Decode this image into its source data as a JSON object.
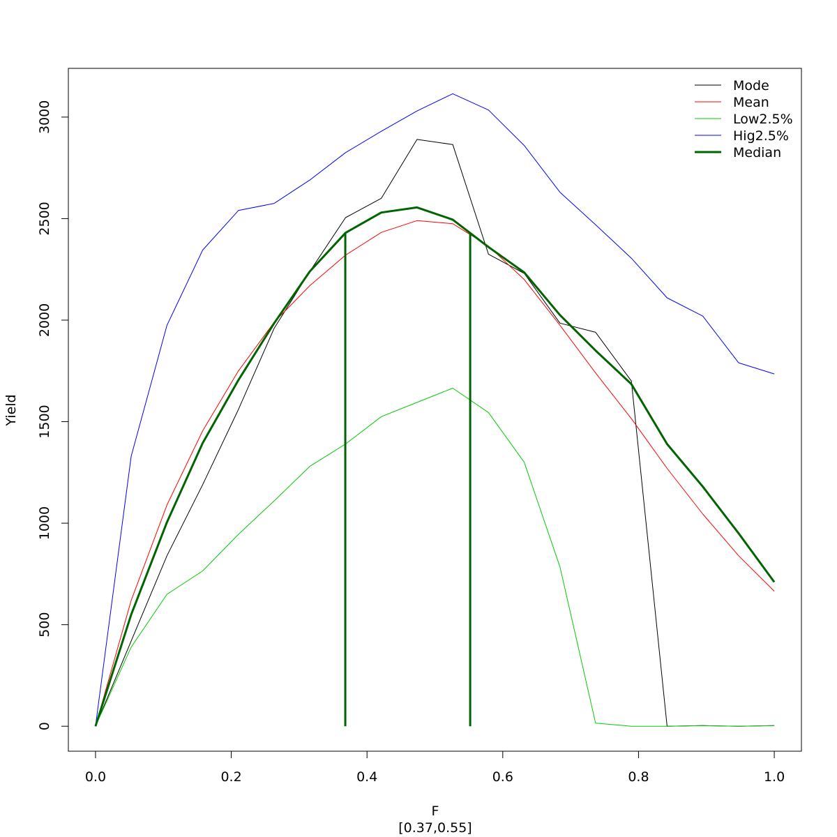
{
  "chart_data": {
    "type": "line",
    "title": "",
    "xlabel": "F",
    "xsublabel": "[0.37,0.55]",
    "ylabel": "Yield",
    "xlim": [
      -0.04,
      1.04
    ],
    "ylim": [
      -123,
      3240
    ],
    "xticks": [
      0.0,
      0.2,
      0.4,
      0.6,
      0.8,
      1.0
    ],
    "xtick_labels": [
      "0.0",
      "0.2",
      "0.4",
      "0.6",
      "0.8",
      "1.0"
    ],
    "yticks": [
      0,
      500,
      1000,
      1500,
      2000,
      2500,
      3000
    ],
    "ytick_labels": [
      "0",
      "500",
      "1000",
      "1500",
      "2000",
      "2500",
      "3000"
    ],
    "grid": false,
    "legend_position": "top-right",
    "x": [
      0.0,
      0.0526,
      0.1053,
      0.1579,
      0.2105,
      0.2632,
      0.3158,
      0.3684,
      0.4211,
      0.4737,
      0.5263,
      0.5789,
      0.6316,
      0.6842,
      0.7368,
      0.7895,
      0.8421,
      0.8947,
      0.9474,
      1.0
    ],
    "series": [
      {
        "name": "Mode",
        "color": "#000000",
        "width": 1,
        "values": [
          0,
          420,
          840,
          1190,
          1560,
          1960,
          2240,
          2505,
          2600,
          2890,
          2865,
          2325,
          2230,
          1985,
          1940,
          1700,
          0,
          3,
          0,
          3
        ]
      },
      {
        "name": "Mean",
        "color": "#ff0000",
        "width": 1,
        "values": [
          0,
          620,
          1090,
          1455,
          1750,
          1990,
          2170,
          2320,
          2432,
          2490,
          2475,
          2365,
          2200,
          1975,
          1740,
          1515,
          1270,
          1045,
          840,
          665
        ]
      },
      {
        "name": "Low2.5%",
        "color": "#00cc00",
        "width": 1,
        "values": [
          0,
          390,
          650,
          765,
          945,
          1110,
          1280,
          1390,
          1525,
          1595,
          1665,
          1545,
          1300,
          785,
          15,
          0,
          0,
          3,
          0,
          3
        ]
      },
      {
        "name": "Hig2.5%",
        "color": "#0000ff",
        "width": 1,
        "values": [
          0,
          1330,
          1975,
          2345,
          2540,
          2575,
          2690,
          2825,
          2930,
          3030,
          3115,
          3035,
          2860,
          2630,
          2470,
          2305,
          2110,
          2020,
          1790,
          1735
        ]
      },
      {
        "name": "Median",
        "color": "#006400",
        "width": 3,
        "values": [
          0,
          550,
          1005,
          1395,
          1705,
          1985,
          2240,
          2430,
          2530,
          2555,
          2495,
          2360,
          2235,
          2025,
          1850,
          1685,
          1390,
          1180,
          950,
          710
        ]
      }
    ],
    "vertical_lines": [
      {
        "x": 0.368,
        "y0": 0,
        "y1": 2430,
        "color": "#006400"
      },
      {
        "x": 0.552,
        "y0": 0,
        "y1": 2430,
        "color": "#006400"
      }
    ]
  }
}
